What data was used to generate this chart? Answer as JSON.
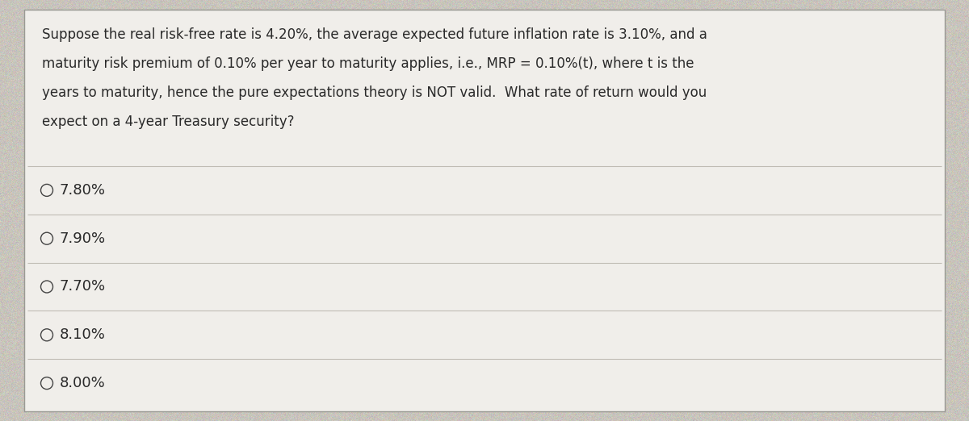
{
  "question_text_lines": [
    "Suppose the real risk-free rate is 4.20%, the average expected future inflation rate is 3.10%, and a",
    "maturity risk premium of 0.10% per year to maturity applies, i.e., MRP = 0.10%(t), where t is the",
    "years to maturity, hence the pure expectations theory is NOT valid.  What rate of return would you",
    "expect on a 4-year Treasury security?"
  ],
  "options": [
    "7.80%",
    "7.90%",
    "7.70%",
    "8.10%",
    "8.00%"
  ],
  "bg_color": "#c8c4bc",
  "card_color": "#f0eeea",
  "text_color": "#2a2a2a",
  "line_color": "#c0bcb4",
  "circle_color": "#444444",
  "font_size_question": 12.0,
  "font_size_option": 13.0
}
